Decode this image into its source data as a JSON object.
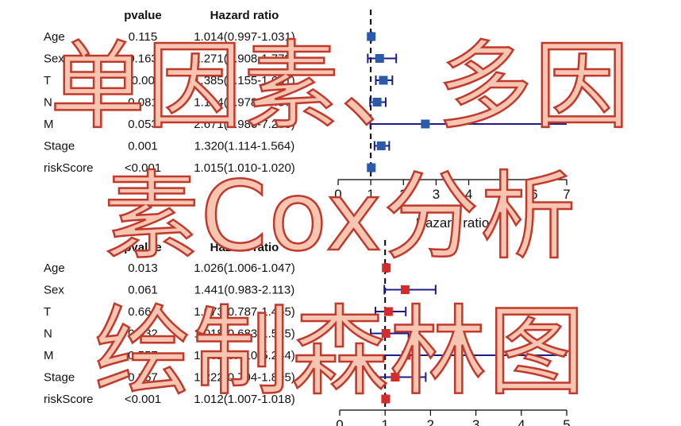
{
  "chart_data": [
    {
      "type": "forest",
      "header_pvalue": "pvalue",
      "header_hr": "Hazard ratio",
      "xlabel": "Hazard ratio",
      "ref_line": 1,
      "xticks": [
        "0",
        "1",
        "2",
        "3",
        "4",
        "5",
        "6",
        "7"
      ],
      "xlim": [
        0,
        7
      ],
      "color": "#2a5aa8",
      "ci_color": "#1c1c8a",
      "rows": [
        {
          "label": "Age",
          "pvalue": "0.115",
          "hr_text": "1.014(0.997-1.031)",
          "hr": 1.014,
          "lo": 0.997,
          "hi": 1.031
        },
        {
          "label": "Sex",
          "pvalue": "0.163",
          "hr_text": "1.271(0.908-1.779)",
          "hr": 1.271,
          "lo": 0.908,
          "hi": 1.779
        },
        {
          "label": "T",
          "pvalue": "<0.001",
          "hr_text": "1.385(1.155-1.661)",
          "hr": 1.385,
          "lo": 1.155,
          "hi": 1.661
        },
        {
          "label": "N",
          "pvalue": "0.081",
          "hr_text": "1.194(0.978-1.457)",
          "hr": 1.194,
          "lo": 0.978,
          "hi": 1.457
        },
        {
          "label": "M",
          "pvalue": "0.053",
          "hr_text": "2.671(0.986-7.235)",
          "hr": 2.671,
          "lo": 0.986,
          "hi": 7.235
        },
        {
          "label": "Stage",
          "pvalue": "0.001",
          "hr_text": "1.320(1.114-1.564)",
          "hr": 1.32,
          "lo": 1.114,
          "hi": 1.564
        },
        {
          "label": "riskScore",
          "pvalue": "<0.001",
          "hr_text": "1.015(1.010-1.020)",
          "hr": 1.015,
          "lo": 1.01,
          "hi": 1.02
        }
      ]
    },
    {
      "type": "forest",
      "header_pvalue": "pvalue",
      "header_hr": "Hazard ratio",
      "ref_line": 1,
      "xticks": [
        "0",
        "1",
        "2",
        "3",
        "4",
        "5"
      ],
      "xlim": [
        0,
        5
      ],
      "color": "#d62b2b",
      "ci_color": "#1c1c8a",
      "rows": [
        {
          "label": "Age",
          "pvalue": "0.013",
          "hr_text": "1.026(1.006-1.047)",
          "hr": 1.026,
          "lo": 1.006,
          "hi": 1.047
        },
        {
          "label": "Sex",
          "pvalue": "0.061",
          "hr_text": "1.441(0.983-2.113)",
          "hr": 1.441,
          "lo": 0.983,
          "hi": 2.113
        },
        {
          "label": "T",
          "pvalue": "0.666",
          "hr_text": "1.073(0.787-1.455)",
          "hr": 1.073,
          "lo": 0.787,
          "hi": 1.455
        },
        {
          "label": "N",
          "pvalue": "0.932",
          "hr_text": "1.018(0.683-1.515)",
          "hr": 1.018,
          "lo": 0.683,
          "hi": 1.515
        },
        {
          "label": "M",
          "pvalue": "0.557",
          "hr_text": "1.462(0.410-5.244)",
          "hr": 1.462,
          "lo": 0.41,
          "hi": 5.244
        },
        {
          "label": "Stage",
          "pvalue": "0.357",
          "hr_text": "1.222(0.794-1.895)",
          "hr": 1.222,
          "lo": 0.794,
          "hi": 1.895
        },
        {
          "label": "riskScore",
          "pvalue": "<0.001",
          "hr_text": "1.012(1.007-1.018)",
          "hr": 1.012,
          "lo": 1.007,
          "hi": 1.018
        }
      ]
    }
  ],
  "overlay": {
    "line1": "单因素、多因",
    "line2": "素Cox分析",
    "line3": "绘制森林图"
  }
}
